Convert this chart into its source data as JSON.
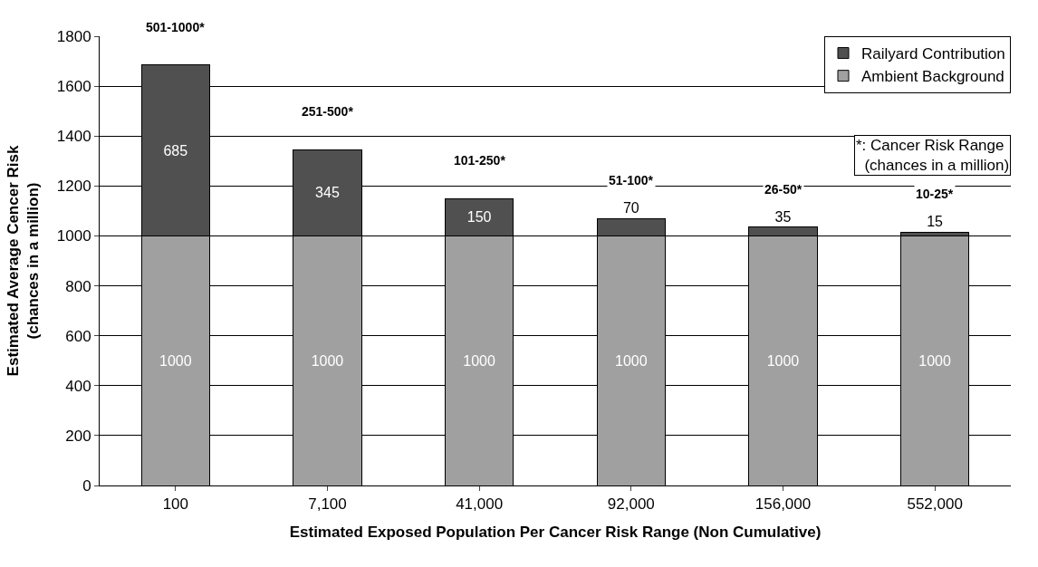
{
  "chart_data": {
    "type": "bar",
    "stacked": true,
    "xlabel": "Estimated Exposed Population Per Cancer Risk Range (Non Cumulative)",
    "ylabel": "Estimated Average Cencer Risk\n(chances in a million)",
    "categories": [
      "100",
      "7,100",
      "41,000",
      "92,000",
      "156,000",
      "552,000"
    ],
    "series": [
      {
        "name": "Ambient Background",
        "color": "#a0a0a0",
        "values": [
          1000,
          1000,
          1000,
          1000,
          1000,
          1000
        ]
      },
      {
        "name": "Railyard Contribution",
        "color": "#505050",
        "values": [
          685,
          345,
          150,
          70,
          35,
          15
        ]
      }
    ],
    "ylim": [
      0,
      1800
    ],
    "yticks": [
      0,
      200,
      400,
      600,
      800,
      1000,
      1200,
      1400,
      1600,
      1800
    ],
    "grid": "y",
    "legend": "top right",
    "data_labels": true,
    "annotations": [
      {
        "text": "501-1000*",
        "x": "100",
        "y": 1685
      },
      {
        "text": "251-500*",
        "x": "7,100",
        "y": 1345
      },
      {
        "text": "101-250*",
        "x": "41,000",
        "y": 1150
      },
      {
        "text": "51-100*",
        "x": "92,000",
        "y": 1070
      },
      {
        "text": "26-50*",
        "x": "156,000",
        "y": 1035
      },
      {
        "text": "10-25*",
        "x": "552,000",
        "y": 1015
      },
      "*: Cancer Risk Range\n  (chances in a million)"
    ]
  }
}
